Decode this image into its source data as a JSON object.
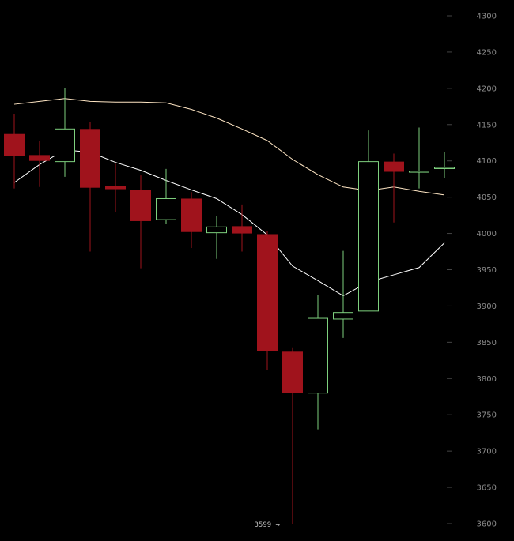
{
  "chart_data": {
    "type": "candlestick",
    "ylim": [
      3600,
      4300
    ],
    "ticks": [
      3600,
      3650,
      3700,
      3750,
      3800,
      3850,
      3900,
      3950,
      4000,
      4050,
      4100,
      4150,
      4200,
      4250,
      4300
    ],
    "grid": false,
    "candles": [
      {
        "open": 4137,
        "high": 4165,
        "low": 4062,
        "close": 4107
      },
      {
        "open": 4108,
        "high": 4128,
        "low": 4064,
        "close": 4100
      },
      {
        "open": 4099,
        "high": 4200,
        "low": 4078,
        "close": 4144
      },
      {
        "open": 4144,
        "high": 4153,
        "low": 3975,
        "close": 4063
      },
      {
        "open": 4065,
        "high": 4096,
        "low": 4030,
        "close": 4061
      },
      {
        "open": 4060,
        "high": 4080,
        "low": 3952,
        "close": 4017
      },
      {
        "open": 4019,
        "high": 4089,
        "low": 4013,
        "close": 4048
      },
      {
        "open": 4048,
        "high": 4057,
        "low": 3980,
        "close": 4002
      },
      {
        "open": 4001,
        "high": 4024,
        "low": 3965,
        "close": 4009
      },
      {
        "open": 4010,
        "high": 4040,
        "low": 3975,
        "close": 4000
      },
      {
        "open": 3999,
        "high": 4003,
        "low": 3812,
        "close": 3838
      },
      {
        "open": 3837,
        "high": 3843,
        "low": 3599,
        "close": 3780
      },
      {
        "open": 3780,
        "high": 3915,
        "low": 3730,
        "close": 3883
      },
      {
        "open": 3882,
        "high": 3976,
        "low": 3856,
        "close": 3891
      },
      {
        "open": 3893,
        "high": 4142,
        "low": 3893,
        "close": 4099
      },
      {
        "open": 4099,
        "high": 4110,
        "low": 4015,
        "close": 4085
      },
      {
        "open": 4085,
        "high": 4146,
        "low": 4062,
        "close": 4086
      },
      {
        "open": 4090,
        "high": 4112,
        "low": 4076,
        "close": 4091
      }
    ],
    "ma_short": [
      4070,
      4095,
      4115,
      4112,
      4098,
      4087,
      4073,
      4060,
      4048,
      4026,
      3998,
      3955,
      3935,
      3914,
      3933,
      3943,
      3953,
      3987
    ],
    "ma_long": [
      4178,
      4182,
      4186,
      4182,
      4181,
      4181,
      4180,
      4171,
      4159,
      4144,
      4128,
      4102,
      4081,
      4064,
      4059,
      4064,
      4058,
      4053
    ],
    "low_annotation": {
      "value": 3599,
      "label": "3599 →"
    },
    "colors": {
      "up": "#7ed07e",
      "down": "#a0131c",
      "ma_short": "#ffffff",
      "ma_long": "#ffe6c4",
      "axis_text": "#8c8c8c"
    }
  }
}
